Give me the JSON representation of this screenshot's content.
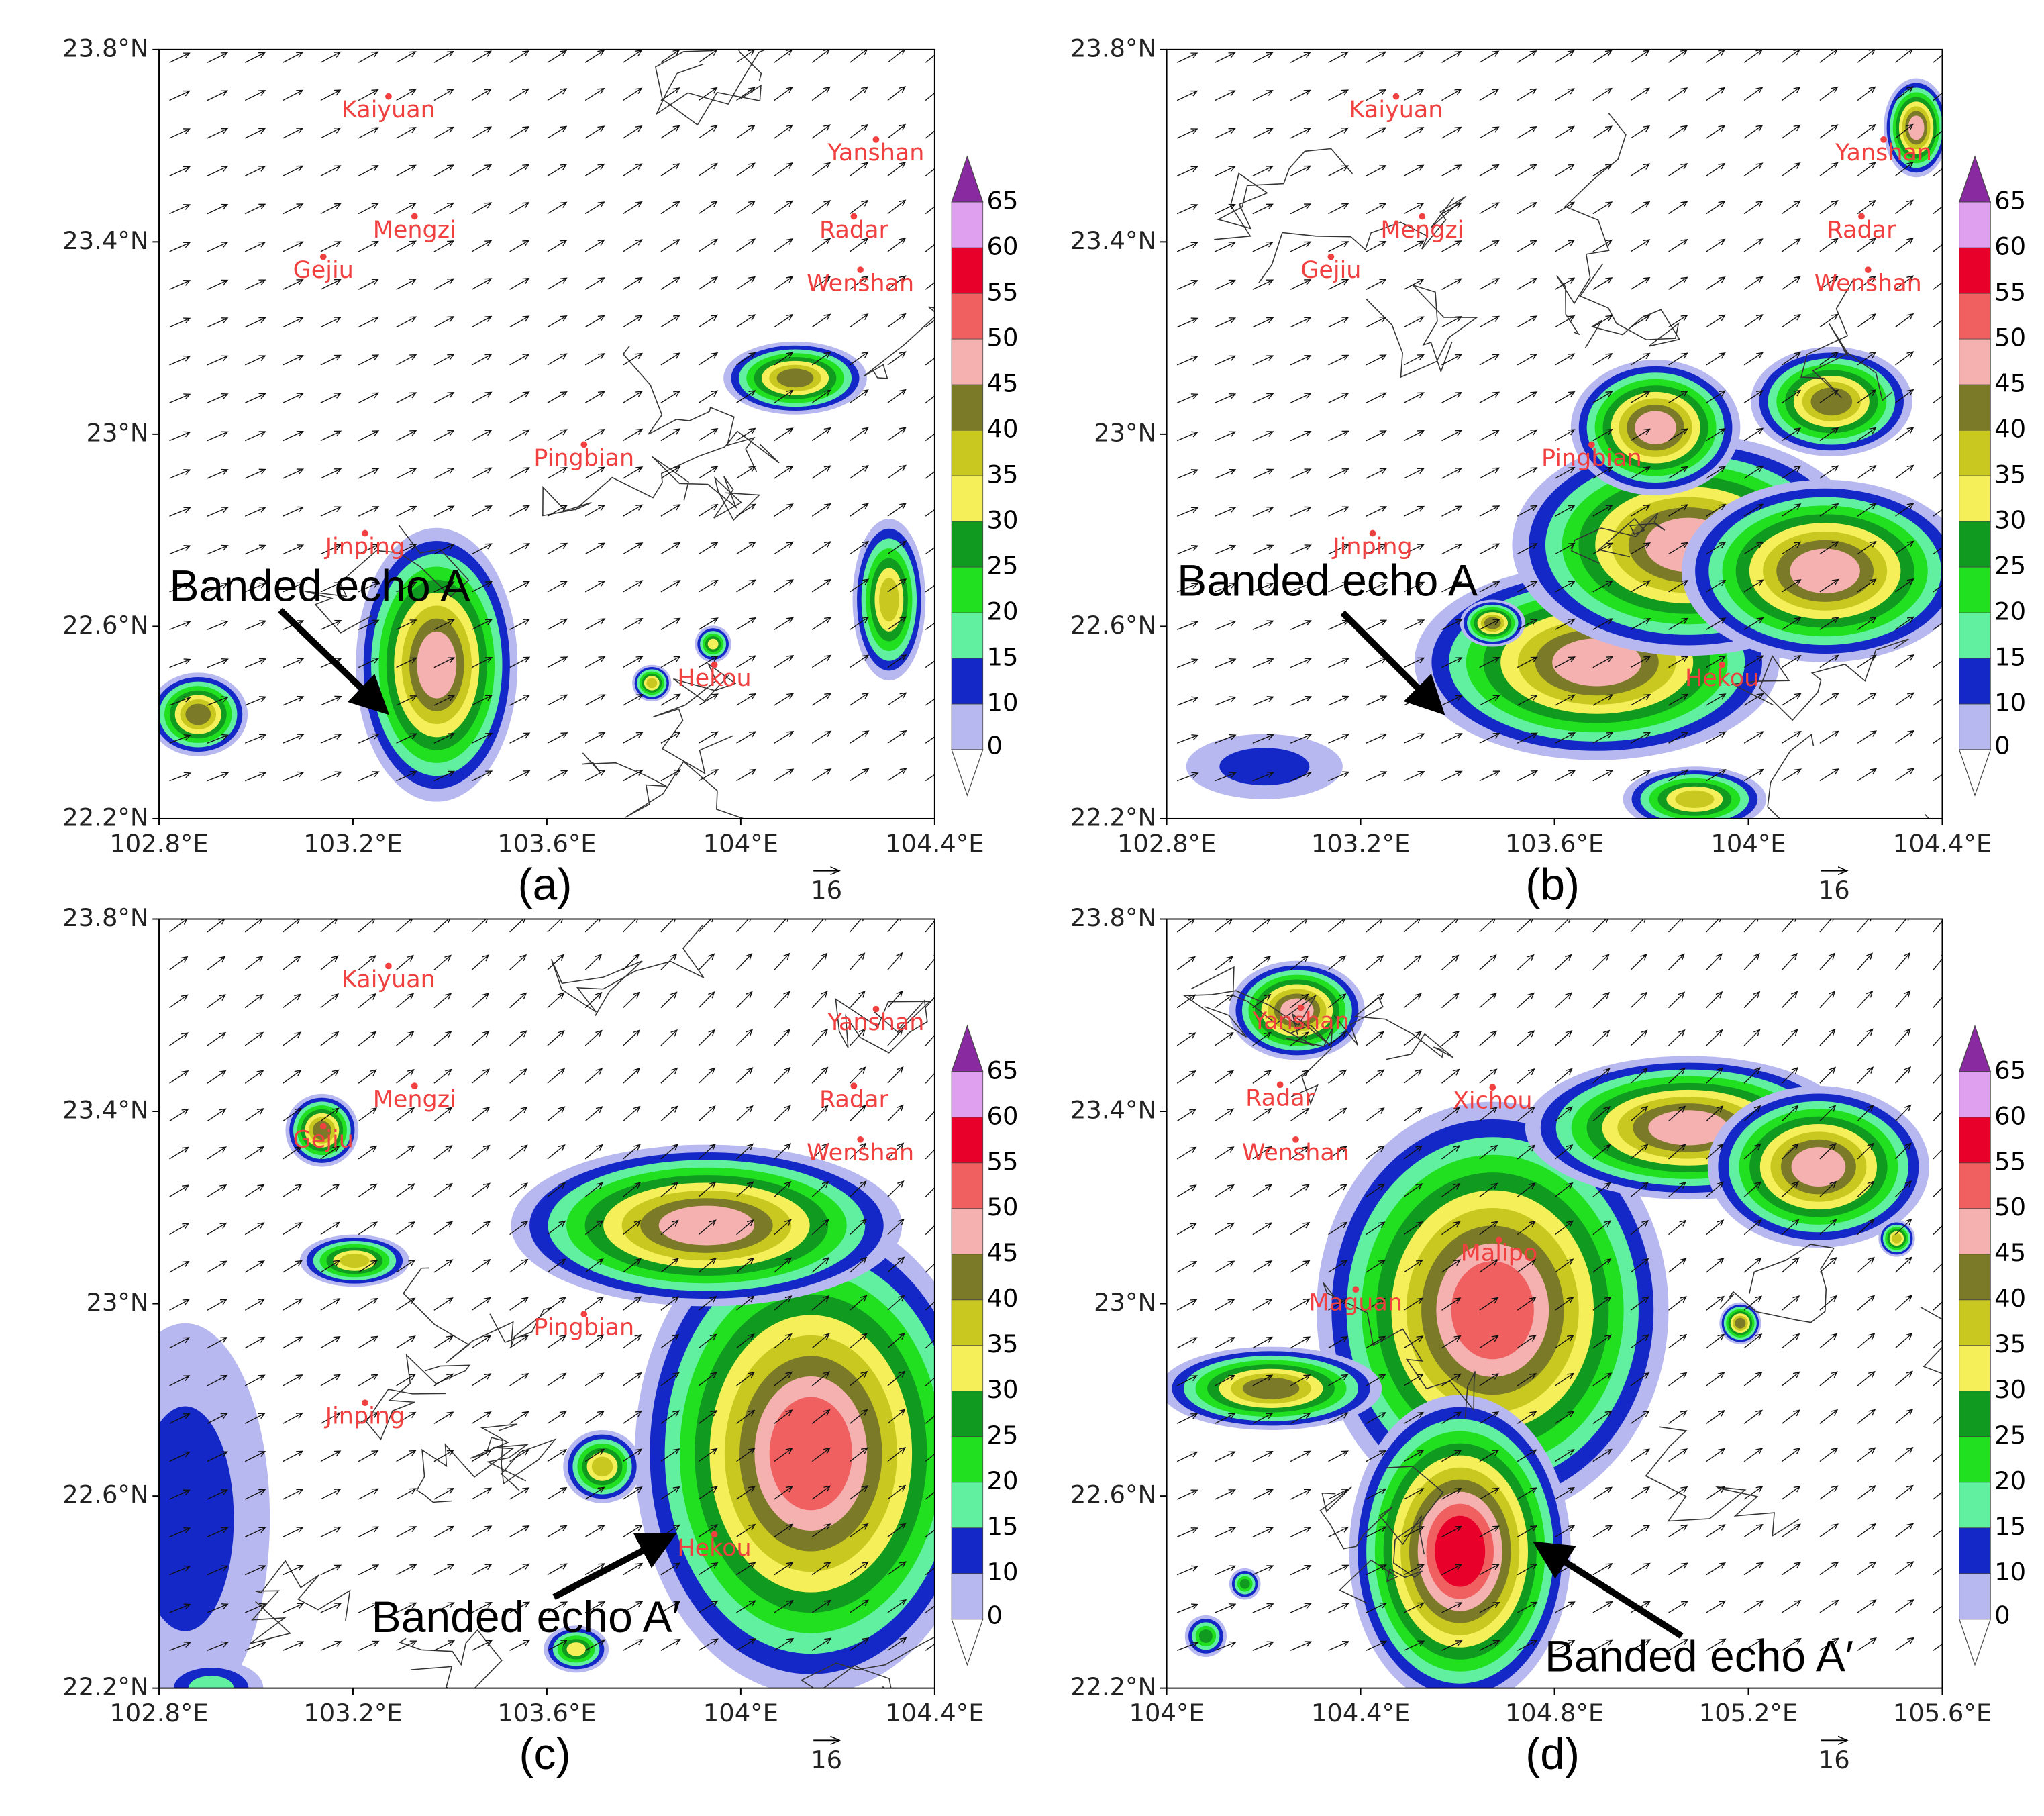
{
  "panels": [
    {
      "label": "(a)",
      "xticks": [
        "102.8°E",
        "103.2°E",
        "103.6°E",
        "104°E",
        "104.4°E"
      ],
      "yticks": [
        "23.8°N",
        "23.4°N",
        "23°N",
        "22.6°N",
        "22.2°N"
      ],
      "cities": [
        "Kaiyuan",
        "Mengzi",
        "Gejiu",
        "Yanshan",
        "Radar",
        "Wenshan",
        "Pingbian",
        "Jinping",
        "Hekou"
      ],
      "annotation": "Banded echo A",
      "vector_ref": "16"
    },
    {
      "label": "(b)",
      "xticks": [
        "102.8°E",
        "103.2°E",
        "103.6°E",
        "104°E",
        "104.4°E"
      ],
      "yticks": [
        "23.8°N",
        "23.4°N",
        "23°N",
        "22.6°N",
        "22.2°N"
      ],
      "cities": [
        "Kaiyuan",
        "Mengzi",
        "Gejiu",
        "Yanshan",
        "Radar",
        "Wenshan",
        "Pingbian",
        "Jinping",
        "Hekou"
      ],
      "annotation": "Banded echo A",
      "vector_ref": "16"
    },
    {
      "label": "(c)",
      "xticks": [
        "102.8°E",
        "103.2°E",
        "103.6°E",
        "104°E",
        "104.4°E"
      ],
      "yticks": [
        "23.8°N",
        "23.4°N",
        "23°N",
        "22.6°N",
        "22.2°N"
      ],
      "cities": [
        "Kaiyuan",
        "Mengzi",
        "Gejiu",
        "Yanshan",
        "Radar",
        "Wenshan",
        "Pingbian",
        "Jinping",
        "Hekou"
      ],
      "annotation": "Banded echo A′",
      "vector_ref": "16"
    },
    {
      "label": "(d)",
      "xticks": [
        "104°E",
        "104.4°E",
        "104.8°E",
        "105.2°E",
        "105.6°E"
      ],
      "yticks": [
        "23.8°N",
        "23.4°N",
        "23°N",
        "22.6°N",
        "22.2°N"
      ],
      "cities": [
        "Yanshan",
        "Radar",
        "Wenshan",
        "Xichou",
        "Malipo",
        "Maguan"
      ],
      "annotation": "Banded echo A′",
      "vector_ref": "16"
    }
  ],
  "colorbar": {
    "levels": [
      0,
      10,
      15,
      20,
      25,
      30,
      35,
      40,
      45,
      50,
      55,
      60,
      65
    ],
    "colors": [
      "#b8b8f0",
      "#1428c8",
      "#60f0a0",
      "#20e020",
      "#109a20",
      "#f5f05a",
      "#c8c820",
      "#7a7a28",
      "#f5b0b0",
      "#f06060",
      "#e8002a",
      "#e0a0f0"
    ],
    "over_color": "#8a2aa0",
    "under_color": "#ffffff"
  }
}
